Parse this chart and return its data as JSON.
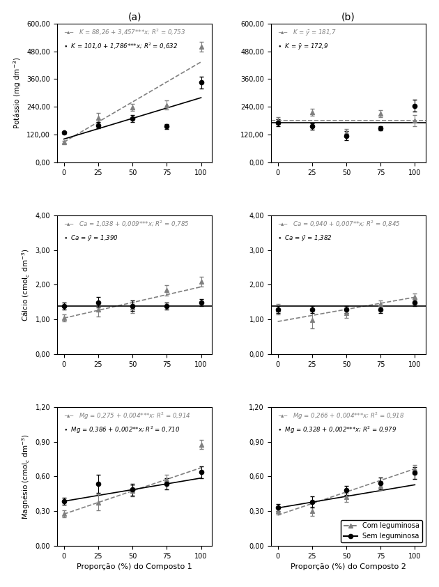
{
  "x": [
    0,
    25,
    50,
    75,
    100
  ],
  "panel_a_K_com_pts": [
    88.26,
    193.0,
    238.0,
    248.0,
    500.0
  ],
  "panel_a_K_com_err": [
    5,
    20,
    15,
    20,
    20
  ],
  "panel_a_K_sem_pts": [
    128.0,
    161.0,
    189.0,
    155.0,
    345.0
  ],
  "panel_a_K_sem_err": [
    5,
    15,
    15,
    10,
    25
  ],
  "panel_a_K_com_intercept": 88.26,
  "panel_a_K_com_slope": 3.457,
  "panel_a_K_sem_intercept": 101.0,
  "panel_a_K_sem_slope": 1.786,
  "panel_b_K_com_mean": 181.7,
  "panel_b_K_sem_mean": 172.9,
  "panel_b_K_com_pts": [
    181.7,
    218.0,
    128.0,
    210.0,
    180.0
  ],
  "panel_b_K_com_err": [
    15,
    15,
    15,
    15,
    25
  ],
  "panel_b_K_sem_pts": [
    172.9,
    155.0,
    115.0,
    148.0,
    245.0
  ],
  "panel_b_K_sem_err": [
    15,
    15,
    20,
    10,
    25
  ],
  "panel_a_Ca_com_pts": [
    1.038,
    1.288,
    1.338,
    1.838,
    2.088
  ],
  "panel_a_Ca_com_err": [
    0.1,
    0.2,
    0.15,
    0.15,
    0.15
  ],
  "panel_a_Ca_sem_pts": [
    1.39,
    1.49,
    1.39,
    1.39,
    1.49
  ],
  "panel_a_Ca_sem_err": [
    0.1,
    0.15,
    0.15,
    0.1,
    0.1
  ],
  "panel_a_Ca_com_intercept": 1.038,
  "panel_a_Ca_com_slope": 0.009,
  "panel_a_Ca_sem_mean": 1.39,
  "panel_b_Ca_com_pts": [
    1.29,
    0.99,
    1.19,
    1.44,
    1.64
  ],
  "panel_b_Ca_com_err": [
    0.15,
    0.25,
    0.15,
    0.1,
    0.1
  ],
  "panel_b_Ca_sem_pts": [
    1.29,
    1.29,
    1.29,
    1.29,
    1.49
  ],
  "panel_b_Ca_sem_err": [
    0.1,
    0.1,
    0.1,
    0.1,
    0.1
  ],
  "panel_b_Ca_com_intercept": 0.94,
  "panel_b_Ca_com_slope": 0.007,
  "panel_b_Ca_sem_mean": 1.382,
  "panel_a_Mg_com_pts": [
    0.275,
    0.375,
    0.475,
    0.575,
    0.875
  ],
  "panel_a_Mg_com_err": [
    0.03,
    0.07,
    0.05,
    0.04,
    0.04
  ],
  "panel_a_Mg_sem_pts": [
    0.386,
    0.536,
    0.486,
    0.536,
    0.636
  ],
  "panel_a_Mg_sem_err": [
    0.03,
    0.08,
    0.05,
    0.05,
    0.05
  ],
  "panel_a_Mg_com_intercept": 0.275,
  "panel_a_Mg_com_slope": 0.004,
  "panel_a_Mg_sem_intercept": 0.386,
  "panel_a_Mg_sem_slope": 0.002,
  "panel_b_Mg_com_pts": [
    0.3,
    0.3,
    0.42,
    0.52,
    0.66
  ],
  "panel_b_Mg_com_err": [
    0.03,
    0.04,
    0.04,
    0.04,
    0.04
  ],
  "panel_b_Mg_sem_pts": [
    0.33,
    0.38,
    0.48,
    0.54,
    0.63
  ],
  "panel_b_Mg_sem_err": [
    0.03,
    0.05,
    0.04,
    0.05,
    0.05
  ],
  "panel_b_Mg_com_intercept": 0.266,
  "panel_b_Mg_com_slope": 0.004,
  "panel_b_Mg_sem_intercept": 0.328,
  "panel_b_Mg_sem_slope": 0.002,
  "color_com": "#808080",
  "color_sem": "#000000",
  "marker_com": "^",
  "marker_sem": "o",
  "title_a": "(a)",
  "title_b": "(b)",
  "xlabel_a": "Proporção (%) do Composto 1",
  "xlabel_b": "Proporção (%) do Composto 2",
  "legend_com": "Com leguminosa",
  "legend_sem": "Sem leguminosa"
}
